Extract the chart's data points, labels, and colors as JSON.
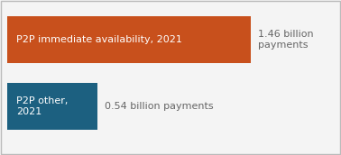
{
  "bars": [
    {
      "label": "P2P immediate availability, 2021",
      "value": 1.46,
      "color": "#c8501c",
      "text_color": "#ffffff",
      "annotation": "1.46 billion\npayments",
      "annotation_align": "left"
    },
    {
      "label": "P2P other,\n2021",
      "value": 0.54,
      "color": "#1c6080",
      "text_color": "#ffffff",
      "annotation": "0.54 billion payments",
      "annotation_align": "left"
    }
  ],
  "max_value": 1.46,
  "background_color": "#f4f4f4",
  "border_color": "#bbbbbb",
  "annotation_color": "#666666",
  "label_fontsize": 8.0,
  "annotation_fontsize": 8.0
}
